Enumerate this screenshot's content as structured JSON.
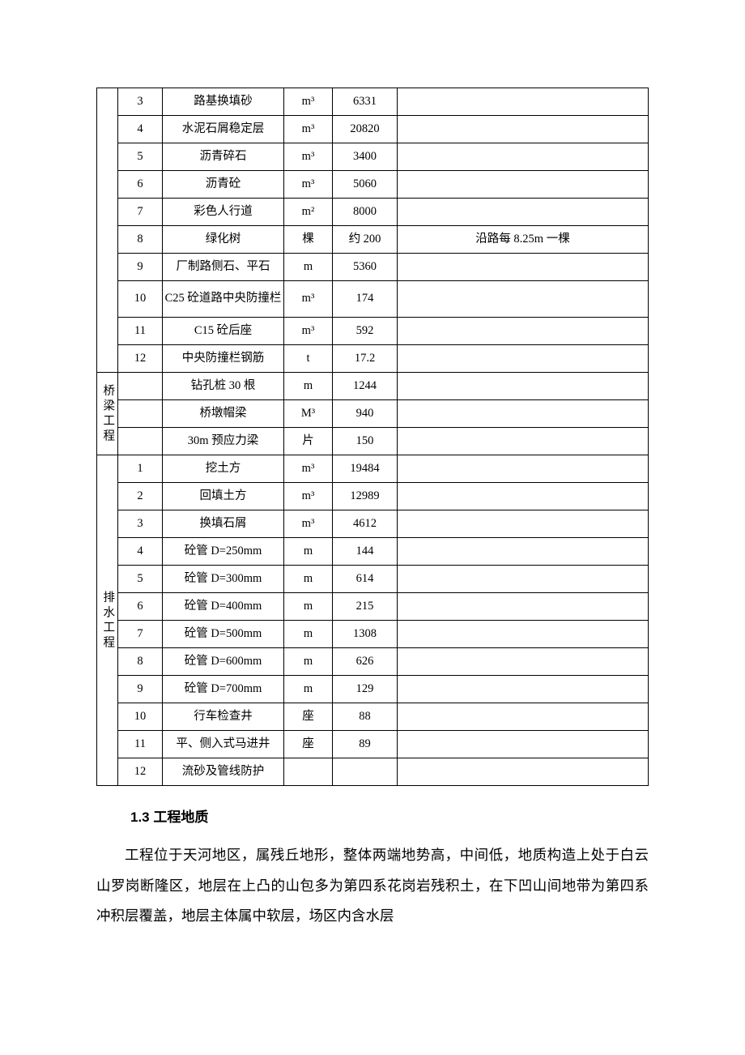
{
  "table": {
    "columns": {
      "cat_width": 26,
      "idx_width": 55,
      "name_width": 150,
      "unit_width": 60,
      "qty_width": 80
    },
    "groups": [
      {
        "category": "",
        "rows": [
          {
            "idx": "3",
            "name": "路基换填砂",
            "unit": "m³",
            "qty": "6331",
            "note": ""
          },
          {
            "idx": "4",
            "name": "水泥石屑稳定层",
            "unit": "m³",
            "qty": "20820",
            "note": ""
          },
          {
            "idx": "5",
            "name": "沥青碎石",
            "unit": "m³",
            "qty": "3400",
            "note": ""
          },
          {
            "idx": "6",
            "name": "沥青砼",
            "unit": "m³",
            "qty": "5060",
            "note": ""
          },
          {
            "idx": "7",
            "name": "彩色人行道",
            "unit": "m²",
            "qty": "8000",
            "note": ""
          },
          {
            "idx": "8",
            "name": "绿化树",
            "unit": "棵",
            "qty": "约 200",
            "note": "沿路每 8.25m 一棵"
          },
          {
            "idx": "9",
            "name": "厂制路侧石、平石",
            "unit": "m",
            "qty": "5360",
            "note": ""
          },
          {
            "idx": "10",
            "name": "C25 砼道路中央防撞栏",
            "unit": "m³",
            "qty": "174",
            "note": "",
            "tall": true
          },
          {
            "idx": "11",
            "name": "C15 砼后座",
            "unit": "m³",
            "qty": "592",
            "note": ""
          },
          {
            "idx": "12",
            "name": "中央防撞栏钢筋",
            "unit": "t",
            "qty": "17.2",
            "note": ""
          }
        ]
      },
      {
        "category": "桥梁工程",
        "rows": [
          {
            "idx": "",
            "name": "钻孔桩 30 根",
            "unit": "m",
            "qty": "1244",
            "note": ""
          },
          {
            "idx": "",
            "name": "桥墩帽梁",
            "unit": "M³",
            "qty": "940",
            "note": ""
          },
          {
            "idx": "",
            "name": "30m 预应力梁",
            "unit": "片",
            "qty": "150",
            "note": ""
          }
        ]
      },
      {
        "category": "排水工程",
        "rows": [
          {
            "idx": "1",
            "name": "挖土方",
            "unit": "m³",
            "qty": "19484",
            "note": ""
          },
          {
            "idx": "2",
            "name": "回填土方",
            "unit": "m³",
            "qty": "12989",
            "note": ""
          },
          {
            "idx": "3",
            "name": "换填石屑",
            "unit": "m³",
            "qty": "4612",
            "note": ""
          },
          {
            "idx": "4",
            "name": "砼管 D=250mm",
            "unit": "m",
            "qty": "144",
            "note": ""
          },
          {
            "idx": "5",
            "name": "砼管 D=300mm",
            "unit": "m",
            "qty": "614",
            "note": ""
          },
          {
            "idx": "6",
            "name": "砼管 D=400mm",
            "unit": "m",
            "qty": "215",
            "note": ""
          },
          {
            "idx": "7",
            "name": "砼管 D=500mm",
            "unit": "m",
            "qty": "1308",
            "note": ""
          },
          {
            "idx": "8",
            "name": "砼管 D=600mm",
            "unit": "m",
            "qty": "626",
            "note": ""
          },
          {
            "idx": "9",
            "name": "砼管 D=700mm",
            "unit": "m",
            "qty": "129",
            "note": ""
          },
          {
            "idx": "10",
            "name": "行车检查井",
            "unit": "座",
            "qty": "88",
            "note": ""
          },
          {
            "idx": "11",
            "name": "平、侧入式马进井",
            "unit": "座",
            "qty": "89",
            "note": ""
          },
          {
            "idx": "12",
            "name": "流砂及管线防护",
            "unit": "",
            "qty": "",
            "note": ""
          }
        ]
      }
    ]
  },
  "section": {
    "number": "1.3",
    "title": "工程地质"
  },
  "paragraph": "工程位于天河地区，属残丘地形，整体两端地势高，中间低，地质构造上处于白云山罗岗断隆区，地层在上凸的山包多为第四系花岗岩残积土，在下凹山间地带为第四系冲积层覆盖，地层主体属中软层，场区内含水层"
}
